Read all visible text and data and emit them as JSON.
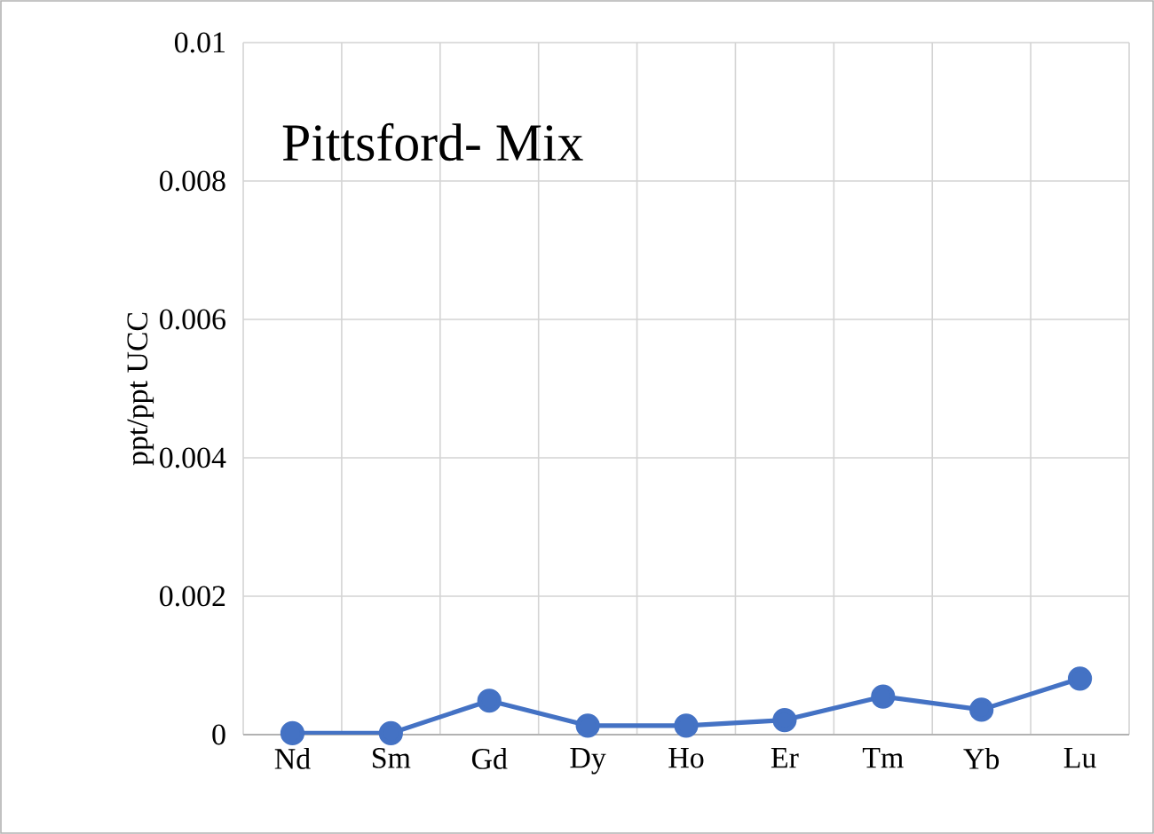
{
  "chart_data": {
    "type": "line",
    "title": "Pittsford- Mix",
    "ylabel": "ppt/ppt UCC",
    "categories": [
      "Nd",
      "Sm",
      "Gd",
      "Dy",
      "Ho",
      "Er",
      "Tm",
      "Yb",
      "Lu"
    ],
    "values": [
      2e-05,
      2e-05,
      0.00049,
      0.00013,
      0.00013,
      0.00021,
      0.00055,
      0.00036,
      0.00081
    ],
    "color": "#4472c4",
    "marker": "circle",
    "grid": true,
    "ylim": [
      0,
      0.01
    ],
    "yticks": [
      0,
      0.002,
      0.004,
      0.006,
      0.008,
      0.01
    ]
  }
}
